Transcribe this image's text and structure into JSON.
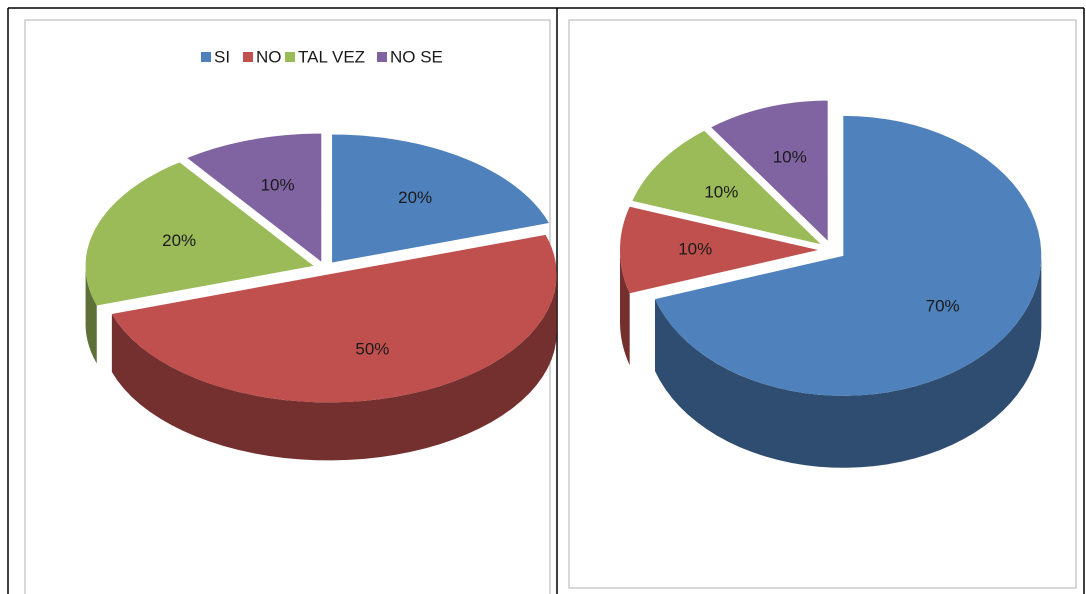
{
  "chart_data": [
    {
      "type": "pie",
      "categories": [
        "SI",
        "NO",
        "TAL VEZ",
        "NO SE"
      ],
      "values": [
        20,
        50,
        20,
        10
      ],
      "value_labels": [
        "20%",
        "50%",
        "20%",
        "10%"
      ],
      "colors": [
        "#4f81bd",
        "#c0504d",
        "#9bbb59",
        "#8064a2"
      ],
      "legend": "top"
    },
    {
      "type": "pie",
      "values": [
        70,
        10,
        10,
        10
      ],
      "value_labels": [
        "70%",
        "10%",
        "10%",
        "10%"
      ],
      "colors": [
        "#4f81bd",
        "#c0504d",
        "#9bbb59",
        "#8064a2"
      ]
    }
  ]
}
